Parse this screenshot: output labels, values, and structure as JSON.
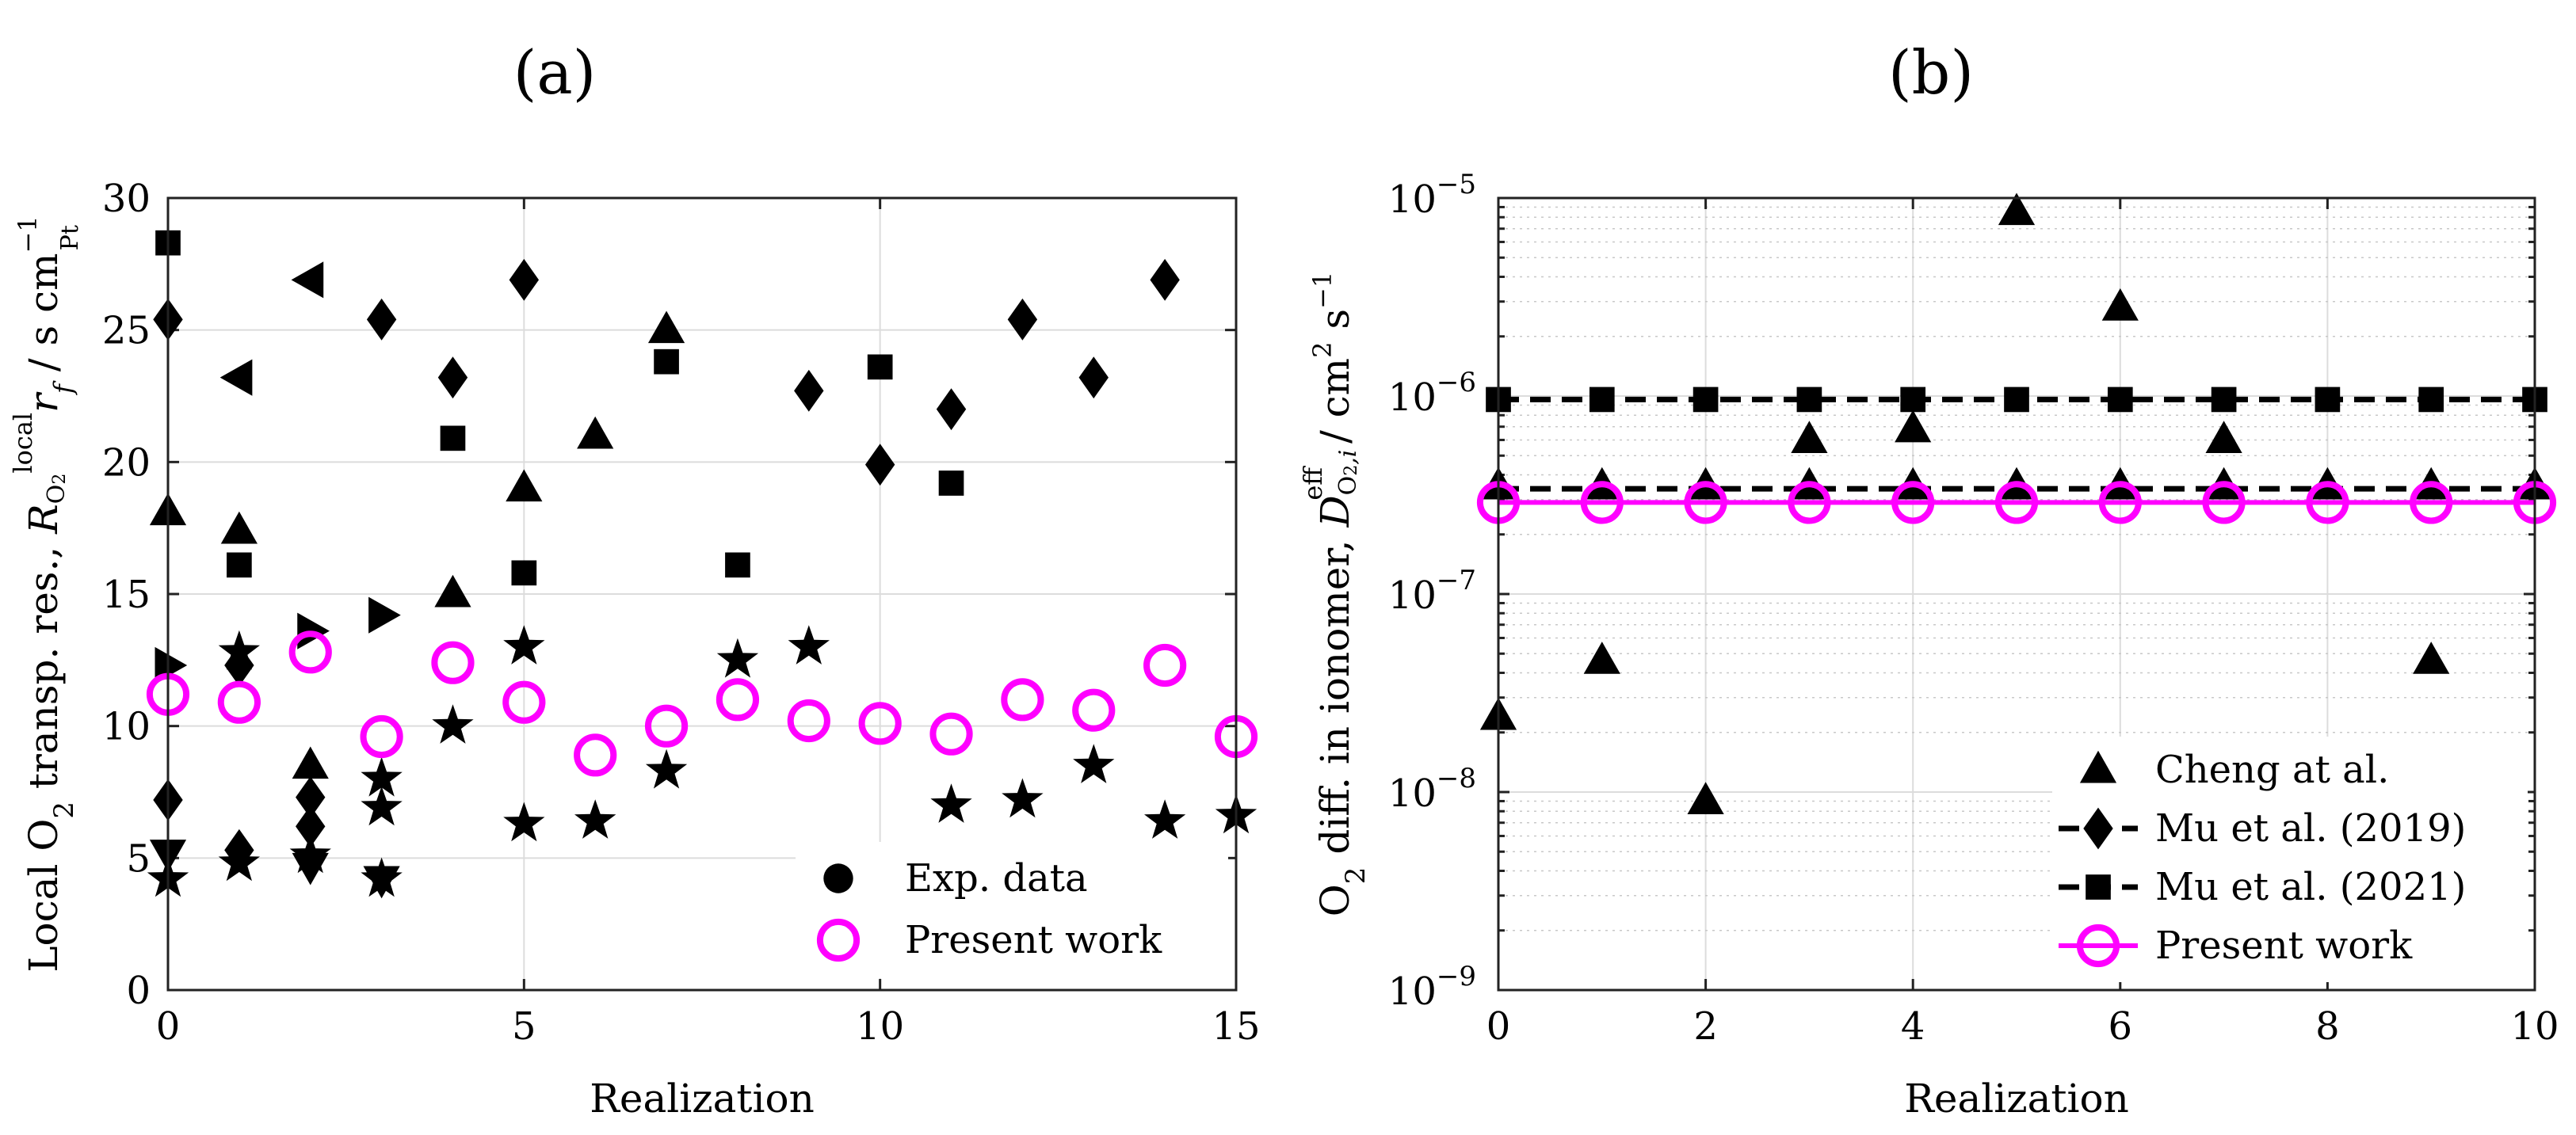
{
  "chart_data": [
    {
      "panel_label": "(a)",
      "type": "scatter",
      "xlabel": "Realization",
      "ylabel_html": "Local O<tspan baseline-shift='sub' font-size='34'>2</tspan> transp. res., <tspan font-style='italic'>R</tspan><tspan baseline-shift='-30%' font-size='30'>O</tspan><tspan baseline-shift='-45%' font-size='22'>2</tspan><tspan dy='-32' font-size='32'>local</tspan><tspan dy='32' font-style='italic'>r</tspan><tspan baseline-shift='sub' font-size='32' font-style='italic'>f</tspan> / s cm<tspan dy='-26' font-size='32'>−1</tspan><tspan dy='52' dx='-44' font-size='30'>Pt</tspan>",
      "xlim": [
        0,
        15
      ],
      "ylim": [
        0,
        30
      ],
      "xticks": [
        "0",
        "5",
        "10",
        "15"
      ],
      "yticks": [
        "0",
        "5",
        "10",
        "15",
        "20",
        "25",
        "30"
      ],
      "grid": true,
      "legend": {
        "position": "bottom-right",
        "entries": [
          {
            "label": "Exp. data",
            "marker": "circle",
            "color": "#000000"
          },
          {
            "label": "Present work",
            "marker": "open-circle",
            "color": "#ff00ff"
          }
        ]
      },
      "series": [
        {
          "name": "Exp. data (square)",
          "marker": "square",
          "color": "#000000",
          "points": [
            [
              0,
              28.3
            ],
            [
              1,
              16.1
            ],
            [
              4,
              20.9
            ],
            [
              5,
              15.8
            ],
            [
              7,
              23.8
            ],
            [
              8,
              16.1
            ],
            [
              10,
              23.6
            ],
            [
              11,
              19.2
            ]
          ]
        },
        {
          "name": "Exp. data (diamond)",
          "marker": "diamond",
          "color": "#000000",
          "points": [
            [
              0,
              25.4
            ],
            [
              0,
              7.2
            ],
            [
              1,
              12.3
            ],
            [
              1,
              5.3
            ],
            [
              2,
              7.3
            ],
            [
              2,
              6.2
            ],
            [
              3,
              25.4
            ],
            [
              4,
              23.2
            ],
            [
              5,
              26.9
            ],
            [
              9,
              22.7
            ],
            [
              10,
              19.9
            ],
            [
              11,
              22.0
            ],
            [
              12,
              25.4
            ],
            [
              13,
              23.2
            ],
            [
              14,
              26.9
            ]
          ]
        },
        {
          "name": "Exp. data (triangle up)",
          "marker": "triangle-up",
          "color": "#000000",
          "points": [
            [
              0,
              18.1
            ],
            [
              1,
              17.4
            ],
            [
              2,
              8.5
            ],
            [
              4,
              15.0
            ],
            [
              5,
              19.0
            ],
            [
              6,
              21.0
            ],
            [
              7,
              25.0
            ]
          ]
        },
        {
          "name": "Exp. data (triangle left)",
          "marker": "triangle-left",
          "color": "#000000",
          "points": [
            [
              1,
              23.2
            ],
            [
              2,
              26.9
            ]
          ]
        },
        {
          "name": "Exp. data (triangle right)",
          "marker": "triangle-right",
          "color": "#000000",
          "points": [
            [
              0,
              12.3
            ],
            [
              2,
              13.6
            ],
            [
              3,
              14.2
            ]
          ]
        },
        {
          "name": "Exp. data (triangle down)",
          "marker": "triangle-down",
          "color": "#000000",
          "points": [
            [
              0,
              5.2
            ],
            [
              2,
              4.7
            ],
            [
              3,
              4.2
            ]
          ]
        },
        {
          "name": "Exp. data (star)",
          "marker": "star",
          "color": "#000000",
          "points": [
            [
              0,
              4.2
            ],
            [
              1,
              12.8
            ],
            [
              1,
              4.8
            ],
            [
              2,
              5.1
            ],
            [
              3,
              8.0
            ],
            [
              3,
              6.9
            ],
            [
              3,
              4.2
            ],
            [
              4,
              10.0
            ],
            [
              5,
              13.0
            ],
            [
              5,
              6.3
            ],
            [
              6,
              6.4
            ],
            [
              7,
              8.3
            ],
            [
              8,
              12.5
            ],
            [
              9,
              13.0
            ],
            [
              11,
              7.0
            ],
            [
              12,
              7.2
            ],
            [
              13,
              8.5
            ],
            [
              14,
              6.4
            ],
            [
              15,
              6.6
            ]
          ]
        },
        {
          "name": "Present work",
          "marker": "open-circle",
          "color": "#ff00ff",
          "points": [
            [
              0,
              11.2
            ],
            [
              1,
              10.9
            ],
            [
              2,
              12.8
            ],
            [
              3,
              9.6
            ],
            [
              4,
              12.4
            ],
            [
              5,
              10.9
            ],
            [
              6,
              8.9
            ],
            [
              7,
              10.0
            ],
            [
              8,
              11.0
            ],
            [
              9,
              10.2
            ],
            [
              10,
              10.1
            ],
            [
              11,
              9.7
            ],
            [
              12,
              11.0
            ],
            [
              13,
              10.6
            ],
            [
              14,
              12.3
            ],
            [
              15,
              9.6
            ]
          ]
        }
      ]
    },
    {
      "panel_label": "(b)",
      "type": "scatter",
      "yscale": "log",
      "xlabel": "Realization",
      "ylabel_html": "O<tspan baseline-shift='sub' font-size='34'>2</tspan> diff. in ionomer, <tspan font-style='italic'>D</tspan><tspan baseline-shift='-30%' font-size='30'>O</tspan><tspan baseline-shift='-45%' font-size='22'>2</tspan><tspan baseline-shift='-30%' font-size='30' font-style='italic'>,i</tspan><tspan dy='-34' dx='-64' font-size='32'>eff</tspan><tspan dy='34' dx='14'> / cm</tspan><tspan dy='-22' font-size='32'>2</tspan><tspan dy='22'> s</tspan><tspan dy='-22' font-size='32'>−1</tspan>",
      "xlim": [
        0,
        10
      ],
      "ylim": [
        1e-09,
        1e-05
      ],
      "xticks": [
        "0",
        "2",
        "4",
        "6",
        "8",
        "10"
      ],
      "yticks": [
        {
          "base": "10",
          "exp": "−9"
        },
        {
          "base": "10",
          "exp": "−8"
        },
        {
          "base": "10",
          "exp": "−7"
        },
        {
          "base": "10",
          "exp": "−6"
        },
        {
          "base": "10",
          "exp": "−5"
        }
      ],
      "grid": true,
      "legend": {
        "position": "bottom-right",
        "entries": [
          {
            "label": "Cheng at al.",
            "marker": "triangle-up",
            "line": "none",
            "color": "#000000"
          },
          {
            "label": "Mu et al. (2019)",
            "marker": "diamond",
            "line": "dashed",
            "color": "#000000"
          },
          {
            "label": "Mu et al. (2021)",
            "marker": "square",
            "line": "dashed",
            "color": "#000000"
          },
          {
            "label": "Present work",
            "marker": "open-circle",
            "line": "solid",
            "color": "#ff00ff"
          }
        ]
      },
      "series": [
        {
          "name": "Cheng at al.",
          "marker": "triangle-up",
          "line": "none",
          "color": "#000000",
          "points": [
            [
              0,
              2.4e-08
            ],
            [
              1,
              4.6e-08
            ],
            [
              2,
              9e-09
            ],
            [
              3,
              6e-07
            ],
            [
              4,
              6.8e-07
            ],
            [
              5,
              8.5e-06
            ],
            [
              6,
              2.8e-06
            ],
            [
              7,
              6e-07
            ],
            [
              9,
              4.6e-08
            ]
          ]
        },
        {
          "name": "Cheng at al. (baseline)",
          "marker": "triangle-up",
          "line": "none",
          "color": "#000000",
          "points": [
            [
              0,
              3.5e-07
            ],
            [
              1,
              3.5e-07
            ],
            [
              2,
              3.5e-07
            ],
            [
              3,
              3.5e-07
            ],
            [
              4,
              3.5e-07
            ],
            [
              5,
              3.5e-07
            ],
            [
              6,
              3.5e-07
            ],
            [
              7,
              3.5e-07
            ],
            [
              8,
              3.5e-07
            ],
            [
              9,
              3.5e-07
            ],
            [
              10,
              3.5e-07
            ]
          ]
        },
        {
          "name": "Mu et al. (2019)",
          "marker": "diamond",
          "line": "dashed",
          "color": "#000000",
          "points": [
            [
              0,
              3.4e-07
            ],
            [
              10,
              3.4e-07
            ]
          ],
          "show_markers": false
        },
        {
          "name": "Mu et al. (2021)",
          "marker": "square",
          "line": "dashed",
          "color": "#000000",
          "points": [
            [
              0,
              9.6e-07
            ],
            [
              1,
              9.6e-07
            ],
            [
              2,
              9.6e-07
            ],
            [
              3,
              9.6e-07
            ],
            [
              4,
              9.6e-07
            ],
            [
              5,
              9.6e-07
            ],
            [
              6,
              9.6e-07
            ],
            [
              7,
              9.6e-07
            ],
            [
              8,
              9.6e-07
            ],
            [
              9,
              9.6e-07
            ],
            [
              10,
              9.6e-07
            ]
          ]
        },
        {
          "name": "Present work",
          "marker": "open-circle",
          "line": "solid",
          "color": "#ff00ff",
          "points": [
            [
              0,
              2.9e-07
            ],
            [
              1,
              2.9e-07
            ],
            [
              2,
              2.9e-07
            ],
            [
              3,
              2.9e-07
            ],
            [
              4,
              2.9e-07
            ],
            [
              5,
              2.9e-07
            ],
            [
              6,
              2.9e-07
            ],
            [
              7,
              2.9e-07
            ],
            [
              8,
              2.9e-07
            ],
            [
              9,
              2.9e-07
            ],
            [
              10,
              2.9e-07
            ]
          ]
        }
      ]
    }
  ]
}
